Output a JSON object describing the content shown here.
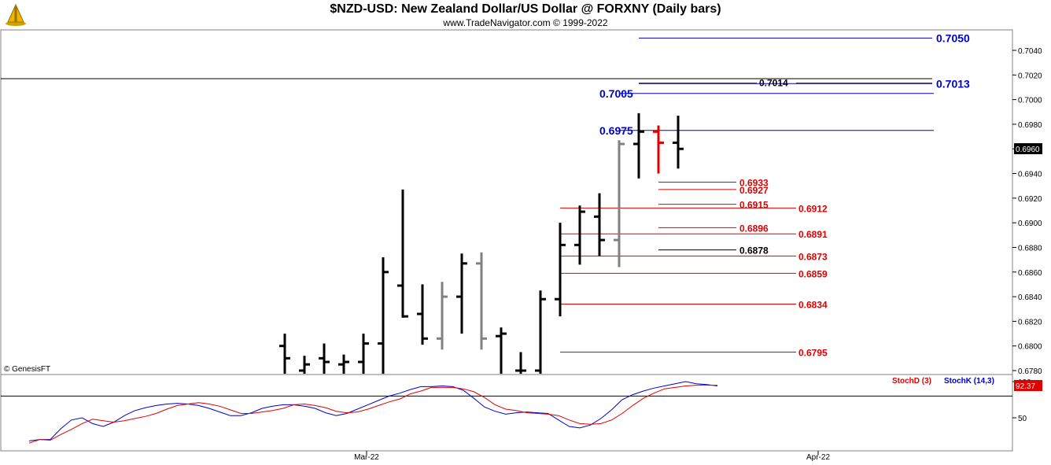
{
  "title": "$NZD-USD:  New Zealand Dollar/US Dollar @ FORXNY  (Daily bars)",
  "subtitle": "www.TradeNavigator.com © 1999-2022",
  "watermark": "© GenesisFT",
  "last_price_label": "0.6960",
  "stoch_value_label": "92.37",
  "colors": {
    "up_bar": "#000000",
    "gray_bar": "#808080",
    "red_bar": "#e00000",
    "blue_level": "#0000cc",
    "red_level": "#e00000",
    "stochK": "#0000cc",
    "stochD": "#e00000"
  },
  "chart_data": [
    {
      "type": "ohlc",
      "title": "$NZD-USD:  New Zealand Dollar/US Dollar @ FORXNY  (Daily bars)",
      "ylim": [
        0.6775,
        0.7055
      ],
      "yticks": [
        "0.7040",
        "0.7020",
        "0.7000",
        "0.6980",
        "0.6960",
        "0.6940",
        "0.6920",
        "0.6900",
        "0.6880",
        "0.6860",
        "0.6840",
        "0.6820",
        "0.6800",
        "0.6780"
      ],
      "xticks": [
        "Mar-22",
        "Apr-22"
      ],
      "bars": [
        {
          "high": 0.681,
          "low": 0.677,
          "open": 0.68,
          "close": 0.679,
          "color": "black"
        },
        {
          "high": 0.6792,
          "low": 0.677,
          "open": 0.678,
          "close": 0.6785,
          "color": "black"
        },
        {
          "high": 0.6802,
          "low": 0.677,
          "open": 0.679,
          "close": 0.6787,
          "color": "black"
        },
        {
          "high": 0.6793,
          "low": 0.677,
          "open": 0.6785,
          "close": 0.6787,
          "color": "black"
        },
        {
          "high": 0.681,
          "low": 0.677,
          "open": 0.6787,
          "close": 0.6802,
          "color": "black"
        },
        {
          "high": 0.6872,
          "low": 0.677,
          "open": 0.6802,
          "close": 0.686,
          "color": "black"
        },
        {
          "high": 0.6927,
          "low": 0.6823,
          "open": 0.6849,
          "close": 0.6824,
          "color": "black"
        },
        {
          "high": 0.685,
          "low": 0.6801,
          "open": 0.6826,
          "close": 0.6806,
          "color": "black"
        },
        {
          "high": 0.6852,
          "low": 0.6797,
          "open": 0.6806,
          "close": 0.684,
          "color": "gray"
        },
        {
          "high": 0.6875,
          "low": 0.681,
          "open": 0.684,
          "close": 0.6867,
          "color": "black"
        },
        {
          "high": 0.6876,
          "low": 0.6797,
          "open": 0.6867,
          "close": 0.6806,
          "color": "gray"
        },
        {
          "high": 0.6815,
          "low": 0.6775,
          "open": 0.6808,
          "close": 0.681,
          "color": "black"
        },
        {
          "high": 0.6795,
          "low": 0.6775,
          "open": 0.678,
          "close": 0.678,
          "color": "black"
        },
        {
          "high": 0.6845,
          "low": 0.677,
          "open": 0.678,
          "close": 0.6838,
          "color": "black"
        },
        {
          "high": 0.69,
          "low": 0.6824,
          "open": 0.6838,
          "close": 0.6882,
          "color": "black"
        },
        {
          "high": 0.6914,
          "low": 0.6866,
          "open": 0.6882,
          "close": 0.6909,
          "color": "black"
        },
        {
          "high": 0.6924,
          "low": 0.6873,
          "open": 0.6905,
          "close": 0.6886,
          "color": "black"
        },
        {
          "high": 0.6967,
          "low": 0.6864,
          "open": 0.6886,
          "close": 0.6964,
          "color": "gray"
        },
        {
          "high": 0.6989,
          "low": 0.6936,
          "open": 0.6964,
          "close": 0.6974,
          "color": "black"
        },
        {
          "high": 0.6979,
          "low": 0.694,
          "open": 0.6974,
          "close": 0.6965,
          "color": "red"
        },
        {
          "high": 0.6987,
          "low": 0.6944,
          "open": 0.6965,
          "close": 0.696,
          "color": "black"
        }
      ],
      "levels": [
        {
          "value": 0.705,
          "label": "0.7050",
          "color": "blue",
          "span": "right"
        },
        {
          "value": 0.7013,
          "label": "0.7013",
          "color": "blue",
          "span": "right"
        },
        {
          "value": 0.7014,
          "label": "0.7014",
          "color": "black",
          "span": "mid"
        },
        {
          "value": 0.7005,
          "label": "0.7005",
          "color": "blue",
          "span": "left"
        },
        {
          "value": 0.6975,
          "label": "0.6975",
          "color": "blue",
          "span": "left"
        },
        {
          "value": 0.6933,
          "label": "0.6933",
          "color": "red",
          "span": "short"
        },
        {
          "value": 0.6927,
          "label": "0.6927",
          "color": "red",
          "span": "short"
        },
        {
          "value": 0.6915,
          "label": "0.6915",
          "color": "red",
          "span": "short"
        },
        {
          "value": 0.6896,
          "label": "0.6896",
          "color": "red",
          "span": "short"
        },
        {
          "value": 0.6878,
          "label": "0.6878",
          "color": "black",
          "span": "short"
        },
        {
          "value": 0.6912,
          "label": "0.6912",
          "color": "red",
          "span": "long"
        },
        {
          "value": 0.6891,
          "label": "0.6891",
          "color": "red",
          "span": "long"
        },
        {
          "value": 0.6873,
          "label": "0.6873",
          "color": "red",
          "span": "long"
        },
        {
          "value": 0.6859,
          "label": "0.6859",
          "color": "red",
          "span": "long"
        },
        {
          "value": 0.6834,
          "label": "0.6834",
          "color": "red",
          "span": "long"
        },
        {
          "value": 0.6795,
          "label": "0.6795",
          "color": "red",
          "span": "long"
        }
      ],
      "horizontal_line": {
        "value": 0.7017
      }
    },
    {
      "type": "line",
      "ylim": [
        0,
        100
      ],
      "yticks": [
        "100",
        "50"
      ],
      "reference_line": 80,
      "series": [
        {
          "name": "StochK (14,3)",
          "color": "blue",
          "values": [
            18,
            20,
            20,
            35,
            47,
            50,
            42,
            38,
            44,
            53,
            60,
            64,
            67,
            69,
            70,
            69,
            67,
            63,
            58,
            53,
            53,
            57,
            63,
            66,
            68,
            68,
            66,
            63,
            57,
            53,
            56,
            62,
            68,
            74,
            80,
            84,
            89,
            93,
            93,
            94,
            93,
            88,
            77,
            65,
            59,
            55,
            57,
            58,
            57,
            56,
            47,
            38,
            36,
            40,
            49,
            61,
            75,
            82,
            87,
            91,
            94,
            97,
            100,
            97,
            96,
            94
          ]
        },
        {
          "name": "StochD (3)",
          "color": "red",
          "values": [
            15,
            20,
            19,
            27,
            34,
            42,
            48,
            46,
            44,
            46,
            49,
            52,
            56,
            62,
            67,
            69,
            71,
            69,
            66,
            61,
            56,
            56,
            58,
            60,
            63,
            68,
            69,
            67,
            64,
            59,
            57,
            58,
            62,
            67,
            72,
            76,
            83,
            87,
            92,
            92,
            92,
            90,
            86,
            78,
            68,
            62,
            60,
            57,
            56,
            55,
            53,
            47,
            42,
            41,
            42,
            47,
            56,
            67,
            77,
            84,
            90,
            92,
            94,
            95,
            95,
            95
          ]
        }
      ]
    }
  ]
}
